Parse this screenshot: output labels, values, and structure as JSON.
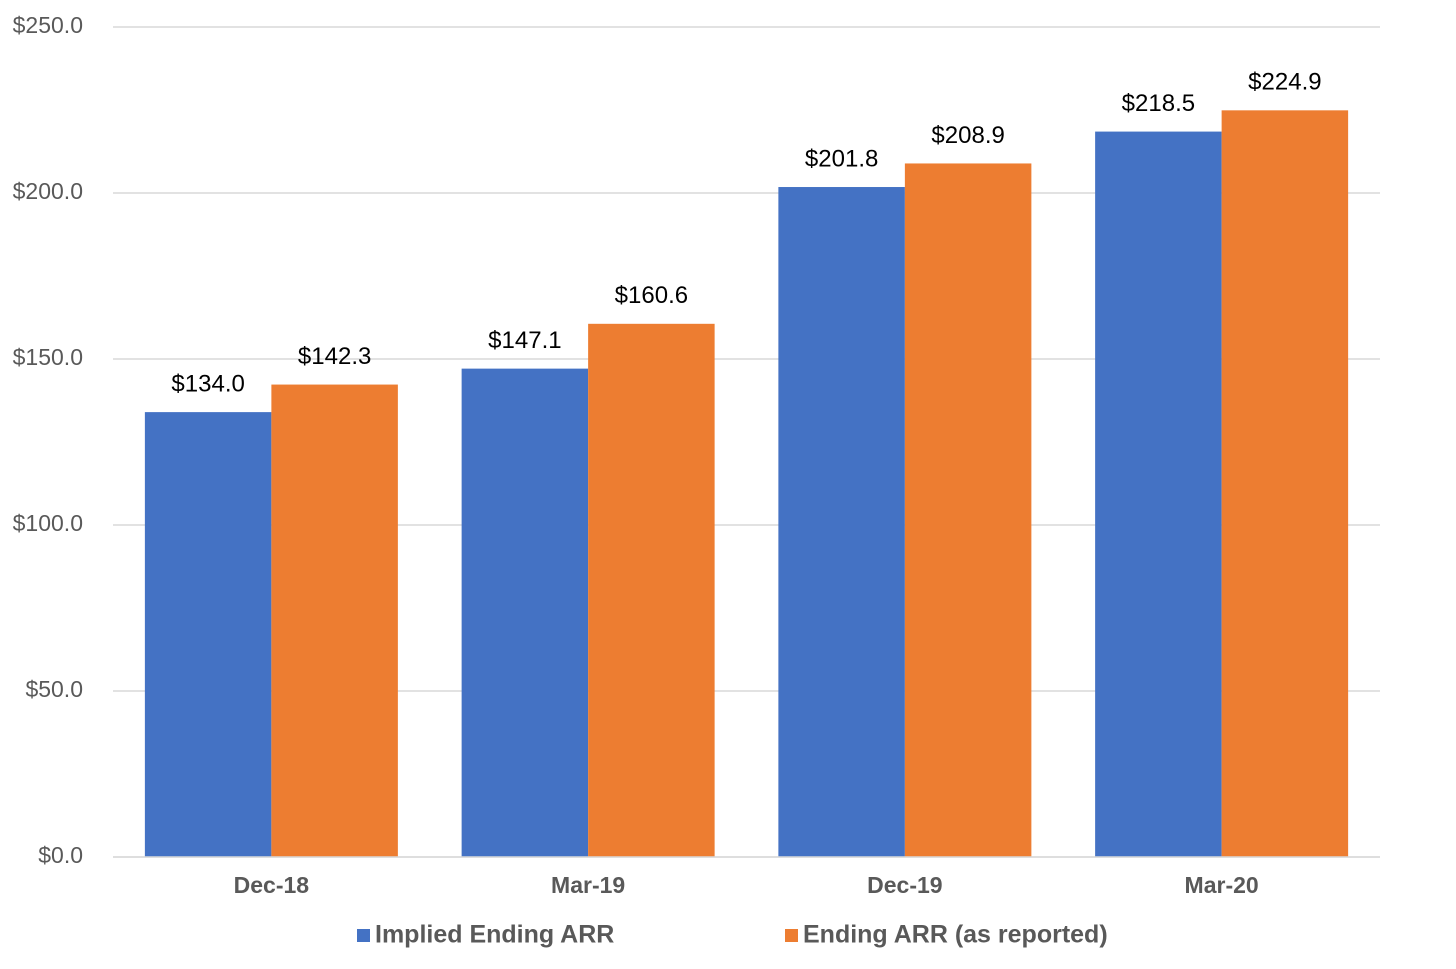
{
  "chart_data": {
    "type": "bar",
    "categories": [
      "Dec-18",
      "Mar-19",
      "Dec-19",
      "Mar-20"
    ],
    "series": [
      {
        "name": "Implied Ending ARR",
        "color": "#4472c4",
        "values": [
          134.0,
          147.1,
          201.8,
          218.5
        ],
        "value_labels": [
          "$134.0",
          "$147.1",
          "$201.8",
          "$218.5"
        ]
      },
      {
        "name": "Ending ARR (as reported)",
        "color": "#ed7d31",
        "values": [
          142.3,
          160.6,
          208.9,
          224.9
        ],
        "value_labels": [
          "$142.3",
          "$160.6",
          "$208.9",
          "$224.9"
        ]
      }
    ],
    "ylim": [
      0,
      250
    ],
    "yticks": [
      {
        "value": 0,
        "label": "$0.0"
      },
      {
        "value": 50,
        "label": "$50.0"
      },
      {
        "value": 100,
        "label": "$100.0"
      },
      {
        "value": 150,
        "label": "$150.0"
      },
      {
        "value": 200,
        "label": "$200.0"
      },
      {
        "value": 250,
        "label": "$250.0"
      }
    ],
    "grid": true,
    "legend": "bottom"
  }
}
